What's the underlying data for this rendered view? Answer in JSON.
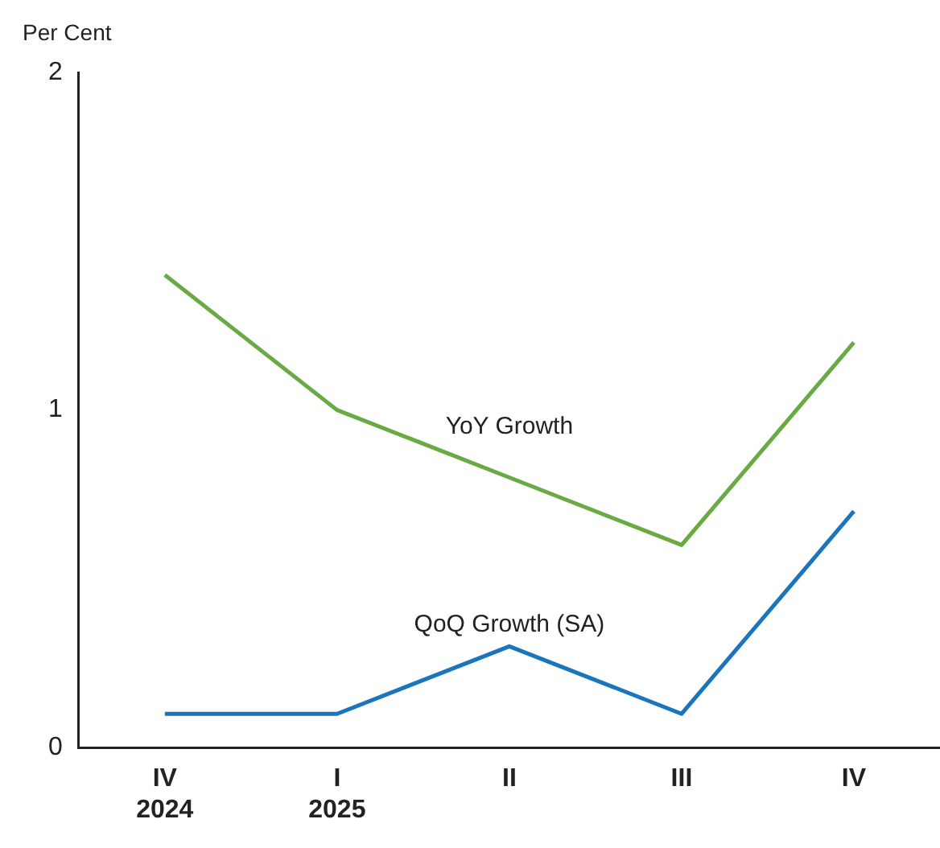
{
  "chart_data": {
    "type": "line",
    "ylabel": "Per Cent",
    "categories": [
      "IV\n2024",
      "I\n2025",
      "II",
      "III",
      "IV"
    ],
    "ylim": [
      0,
      2
    ],
    "yticks": [
      0,
      1,
      2
    ],
    "grid": false,
    "legend": false,
    "marker": "none",
    "line_style": "solid",
    "series": [
      {
        "name": "YoY Growth",
        "color": "#6aaa45",
        "values": [
          1.4,
          1.0,
          0.8,
          0.6,
          1.2
        ]
      },
      {
        "name": "QoQ Growth (SA)",
        "color": "#1a75bc",
        "values": [
          0.1,
          0.1,
          0.3,
          0.1,
          0.7
        ]
      }
    ]
  }
}
